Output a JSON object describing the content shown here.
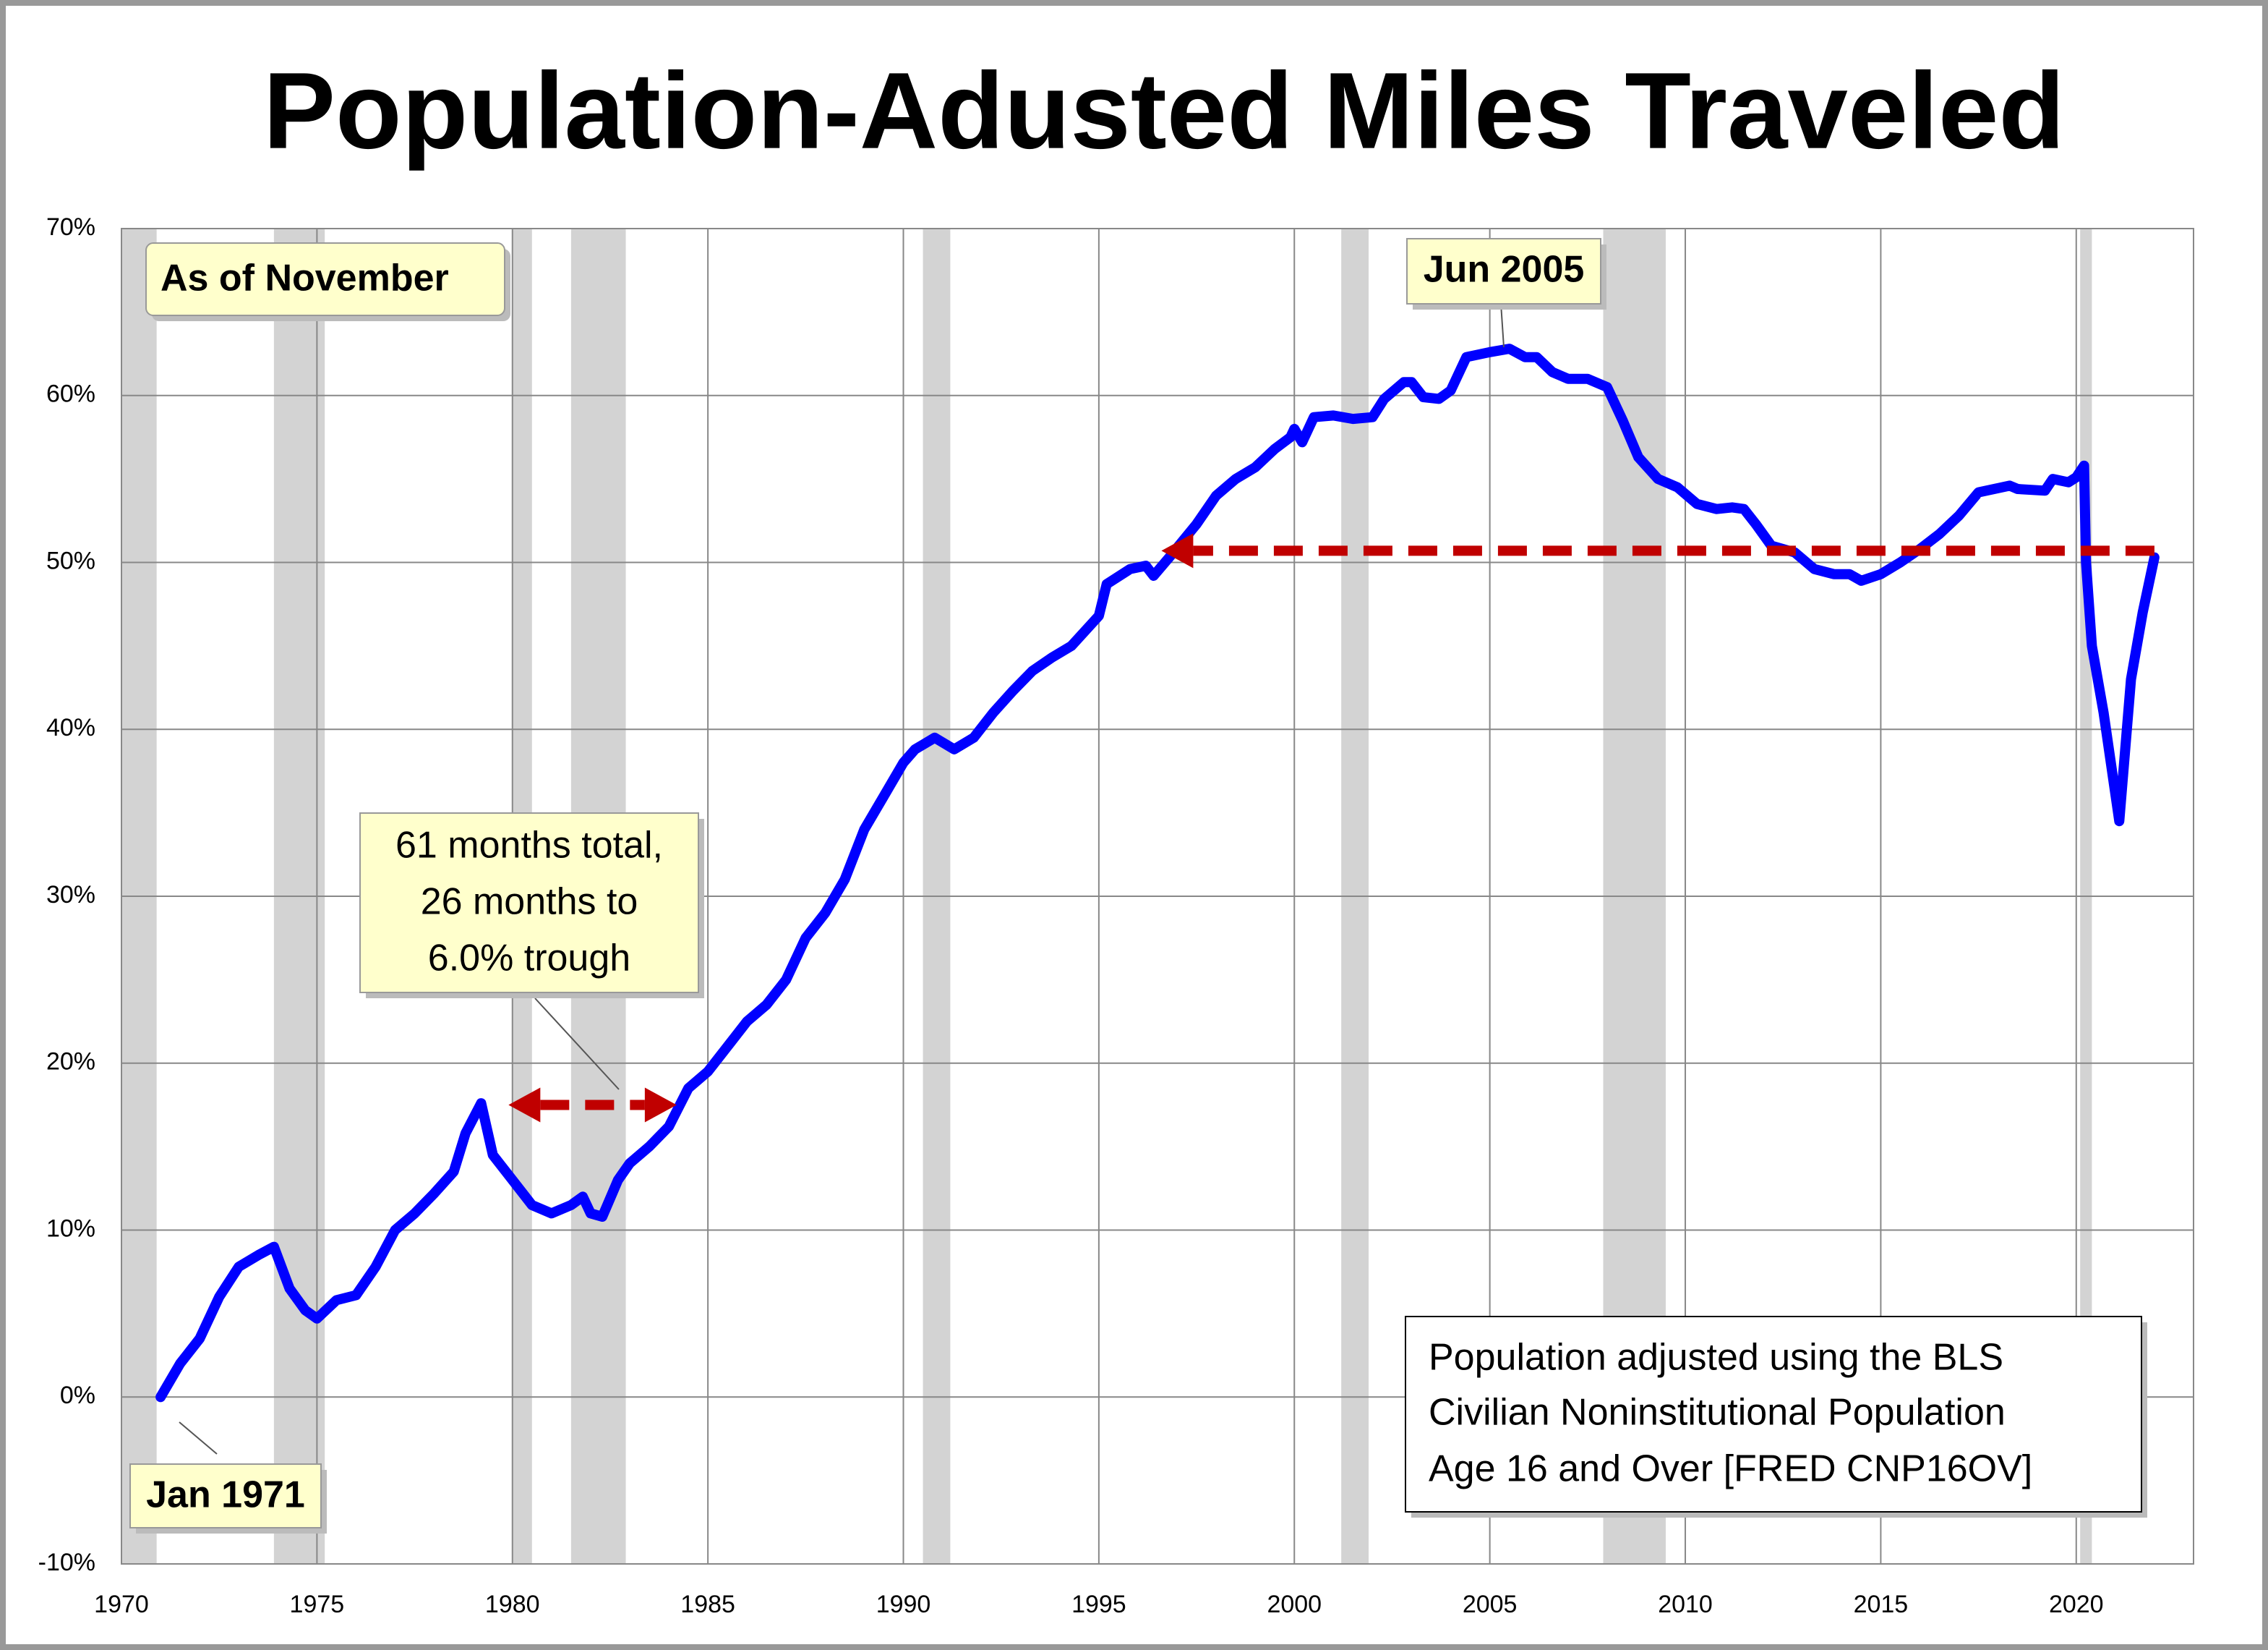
{
  "chart_data": {
    "type": "line",
    "title": "Population-Adusted Miles Traveled",
    "color": "#0000ff",
    "x": [
      1971.0,
      1971.5,
      1972.0,
      1972.5,
      1973.0,
      1973.5,
      1973.9,
      1974.3,
      1974.7,
      1975.0,
      1975.5,
      1976.0,
      1976.5,
      1977.0,
      1977.5,
      1978.0,
      1978.5,
      1978.8,
      1979.2,
      1979.5,
      1980.0,
      1980.5,
      1981.0,
      1981.5,
      1981.8,
      1982.0,
      1982.3,
      1982.7,
      1983.0,
      1983.5,
      1984.0,
      1984.5,
      1985.0,
      1985.5,
      1986.0,
      1986.5,
      1987.0,
      1987.5,
      1988.0,
      1988.5,
      1989.0,
      1989.5,
      1990.0,
      1990.3,
      1990.8,
      1991.3,
      1991.8,
      1992.3,
      1992.8,
      1993.3,
      1993.8,
      1994.3,
      1995.0,
      1995.2,
      1995.8,
      1996.2,
      1996.4,
      1996.8,
      1997.5,
      1998.0,
      1998.5,
      1999.0,
      1999.5,
      1999.9,
      2000.0,
      2000.2,
      2000.5,
      2001.0,
      2001.5,
      2002.0,
      2002.3,
      2002.8,
      2003.0,
      2003.3,
      2003.7,
      2004.0,
      2004.4,
      2005.0,
      2005.5,
      2005.9,
      2006.2,
      2006.6,
      2007.0,
      2007.5,
      2008.0,
      2008.4,
      2008.8,
      2009.3,
      2009.8,
      2010.3,
      2010.8,
      2011.2,
      2011.5,
      2011.8,
      2012.2,
      2012.8,
      2013.3,
      2013.8,
      2014.2,
      2014.5,
      2015.0,
      2015.5,
      2016.0,
      2016.5,
      2017.0,
      2017.5,
      2018.3,
      2018.5,
      2019.2,
      2019.4,
      2019.8,
      2020.0,
      2020.2,
      2020.25,
      2020.4,
      2020.7,
      2021.1,
      2021.4,
      2021.7,
      2022.0
    ],
    "values": [
      0,
      2,
      3.5,
      6,
      7.8,
      8.5,
      9,
      6.5,
      5.2,
      4.7,
      5.8,
      6.1,
      7.8,
      10,
      11,
      12.2,
      13.5,
      15.8,
      17.6,
      14.5,
      13,
      11.5,
      11,
      11.5,
      12,
      11,
      10.8,
      13,
      14,
      15,
      16.2,
      18.5,
      19.5,
      21,
      22.5,
      23.5,
      25,
      27.5,
      29,
      31,
      34,
      36,
      38,
      38.8,
      39.5,
      38.8,
      39.5,
      41,
      42.3,
      43.5,
      44.3,
      45,
      46.8,
      48.7,
      49.6,
      49.8,
      49.2,
      50.3,
      52.3,
      54,
      55,
      55.7,
      56.8,
      57.5,
      58,
      57.2,
      58.7,
      58.8,
      58.6,
      58.7,
      59.8,
      60.8,
      60.8,
      59.9,
      59.8,
      60.3,
      62.3,
      62.6,
      62.8,
      62.3,
      62.3,
      61.4,
      61,
      61,
      60.5,
      58.5,
      56.3,
      55,
      54.5,
      53.5,
      53.2,
      53.3,
      53.2,
      52.3,
      51,
      50.6,
      49.6,
      49.3,
      49.3,
      48.9,
      49.3,
      50,
      50.8,
      51.7,
      52.8,
      54.2,
      54.6,
      54.4,
      54.3,
      55,
      54.8,
      55.1,
      55.8,
      50,
      45,
      41,
      34.5,
      43,
      47,
      50.3
    ],
    "xlim": [
      1970,
      2023
    ],
    "xticks": [
      1970,
      1975,
      1980,
      1985,
      1990,
      1995,
      2000,
      2005,
      2010,
      2015,
      2020
    ],
    "ylim": [
      -10,
      70
    ],
    "yticks": [
      {
        "value": -10,
        "label": "-10%"
      },
      {
        "value": 0,
        "label": "0%"
      },
      {
        "value": 10,
        "label": "10%"
      },
      {
        "value": 20,
        "label": "20%"
      },
      {
        "value": 30,
        "label": "30%"
      },
      {
        "value": 40,
        "label": "40%"
      },
      {
        "value": 50,
        "label": "50%"
      },
      {
        "value": 60,
        "label": "60%"
      },
      {
        "value": 70,
        "label": "70%"
      }
    ],
    "grid": true,
    "recessions": [
      [
        1970.0,
        1970.9
      ],
      [
        1973.9,
        1975.2
      ],
      [
        1980.0,
        1980.5
      ],
      [
        1981.5,
        1982.9
      ],
      [
        1990.5,
        1991.2
      ],
      [
        2001.2,
        2001.9
      ],
      [
        2007.9,
        2009.5
      ],
      [
        2020.1,
        2020.4
      ]
    ],
    "recession_color": "#d3d3d3",
    "arrows": [
      {
        "x": [
          1979.9,
          1984.2
        ],
        "y": 17.5,
        "heads": "both",
        "color": "#c00000"
      },
      {
        "x": [
          2022.0,
          1996.6
        ],
        "y": 50.7,
        "heads": "end",
        "color": "#c00000"
      }
    ],
    "annotations": {
      "as_of": "As of November",
      "peak": "Jun 2005",
      "start": "Jan 1971",
      "recession_note": [
        "61 months total,",
        "26 months to",
        "6.0% trough"
      ],
      "source_note": [
        "Population adjusted using the BLS",
        "Civilian Noninstitutional Population",
        "Age 16 and Over  [FRED CNP16OV]"
      ]
    }
  }
}
